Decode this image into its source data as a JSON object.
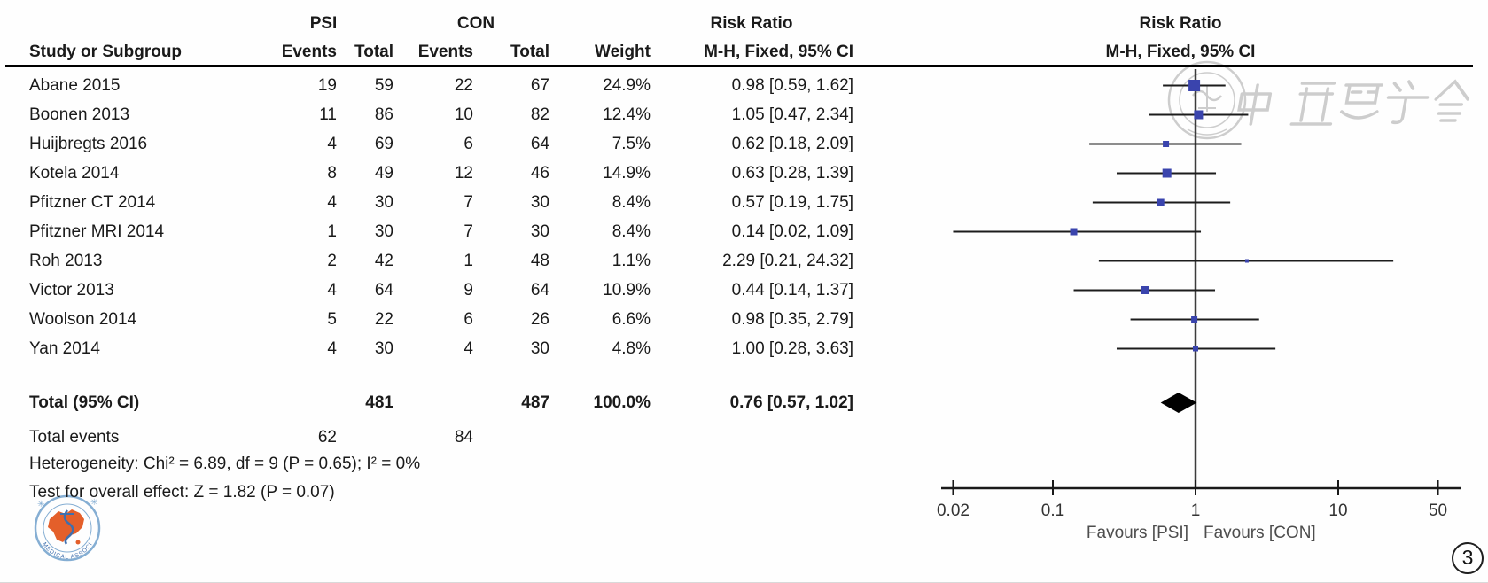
{
  "table": {
    "group1": "PSI",
    "group2": "CON",
    "col_study": "Study or Subgroup",
    "col_events": "Events",
    "col_total": "Total",
    "col_weight": "Weight",
    "col_rr": "Risk Ratio",
    "col_mh": "M-H, Fixed, 95% CI"
  },
  "chart_data": {
    "type": "forest",
    "effect_measure": "Risk Ratio",
    "method": "M-H, Fixed, 95% CI",
    "x_axis": {
      "scale": "log",
      "ticks": [
        0.02,
        0.1,
        1,
        10,
        50
      ],
      "tick_labels": [
        "0.02",
        "0.1",
        "1",
        "10",
        "50"
      ],
      "null_line": 1,
      "range": [
        0.02,
        50
      ]
    },
    "studies": [
      {
        "name": "Abane 2015",
        "psi_events": 19,
        "psi_total": 59,
        "con_events": 22,
        "con_total": 67,
        "weight": "24.9%",
        "weight_pct": 24.9,
        "rr": 0.98,
        "ci_low": 0.59,
        "ci_high": 1.62,
        "label": "0.98 [0.59, 1.62]"
      },
      {
        "name": "Boonen 2013",
        "psi_events": 11,
        "psi_total": 86,
        "con_events": 10,
        "con_total": 82,
        "weight": "12.4%",
        "weight_pct": 12.4,
        "rr": 1.05,
        "ci_low": 0.47,
        "ci_high": 2.34,
        "label": "1.05 [0.47, 2.34]"
      },
      {
        "name": "Huijbregts 2016",
        "psi_events": 4,
        "psi_total": 69,
        "con_events": 6,
        "con_total": 64,
        "weight": "7.5%",
        "weight_pct": 7.5,
        "rr": 0.62,
        "ci_low": 0.18,
        "ci_high": 2.09,
        "label": "0.62 [0.18, 2.09]"
      },
      {
        "name": "Kotela 2014",
        "psi_events": 8,
        "psi_total": 49,
        "con_events": 12,
        "con_total": 46,
        "weight": "14.9%",
        "weight_pct": 14.9,
        "rr": 0.63,
        "ci_low": 0.28,
        "ci_high": 1.39,
        "label": "0.63 [0.28, 1.39]"
      },
      {
        "name": "Pfitzner CT 2014",
        "psi_events": 4,
        "psi_total": 30,
        "con_events": 7,
        "con_total": 30,
        "weight": "8.4%",
        "weight_pct": 8.4,
        "rr": 0.57,
        "ci_low": 0.19,
        "ci_high": 1.75,
        "label": "0.57 [0.19, 1.75]"
      },
      {
        "name": "Pfitzner MRI 2014",
        "psi_events": 1,
        "psi_total": 30,
        "con_events": 7,
        "con_total": 30,
        "weight": "8.4%",
        "weight_pct": 8.4,
        "rr": 0.14,
        "ci_low": 0.02,
        "ci_high": 1.09,
        "label": "0.14 [0.02, 1.09]"
      },
      {
        "name": "Roh 2013",
        "psi_events": 2,
        "psi_total": 42,
        "con_events": 1,
        "con_total": 48,
        "weight": "1.1%",
        "weight_pct": 1.1,
        "rr": 2.29,
        "ci_low": 0.21,
        "ci_high": 24.32,
        "label": "2.29 [0.21, 24.32]"
      },
      {
        "name": "Victor 2013",
        "psi_events": 4,
        "psi_total": 64,
        "con_events": 9,
        "con_total": 64,
        "weight": "10.9%",
        "weight_pct": 10.9,
        "rr": 0.44,
        "ci_low": 0.14,
        "ci_high": 1.37,
        "label": "0.44 [0.14, 1.37]"
      },
      {
        "name": "Woolson 2014",
        "psi_events": 5,
        "psi_total": 22,
        "con_events": 6,
        "con_total": 26,
        "weight": "6.6%",
        "weight_pct": 6.6,
        "rr": 0.98,
        "ci_low": 0.35,
        "ci_high": 2.79,
        "label": "0.98 [0.35, 2.79]"
      },
      {
        "name": "Yan 2014",
        "psi_events": 4,
        "psi_total": 30,
        "con_events": 4,
        "con_total": 30,
        "weight": "4.8%",
        "weight_pct": 4.8,
        "rr": 1.0,
        "ci_low": 0.28,
        "ci_high": 3.63,
        "label": "1.00 [0.28, 3.63]"
      }
    ],
    "total": {
      "name": "Total (95% CI)",
      "psi_total": 481,
      "con_total": 487,
      "weight": "100.0%",
      "rr": 0.76,
      "ci_low": 0.57,
      "ci_high": 1.02,
      "label": "0.76 [0.57, 1.02]"
    },
    "total_events": {
      "label": "Total events",
      "psi": 62,
      "con": 84
    },
    "heterogeneity": "Heterogeneity: Chi² = 6.89, df = 9 (P = 0.65); I² = 0%",
    "overall_effect": "Test for overall effect: Z = 1.82 (P = 0.07)",
    "favours_left": "Favours [PSI]",
    "favours_right": "Favours [CON]",
    "legend_position": "below-axis",
    "grid": false
  },
  "annotations": {
    "figure_number": "3",
    "watermark_script_name": "chinese-medical-association-script-watermark",
    "watermark_stamp_name": "chinese-medical-association-seal-watermark",
    "logo_name": "chinese-medical-association-logo"
  },
  "colors": {
    "marker_square": "#3a44ad",
    "ci_line": "#1c1c1c",
    "diamond": "#000000",
    "null_line": "#3c3c3c",
    "axis": "#1a1a1a",
    "axis_text": "#333333",
    "favours_text": "#4d4d4d",
    "watermark_gray": "#cdcdcd",
    "logo_orange": "#e45f2a",
    "logo_blue": "#85aed3",
    "logo_dark_blue": "#3f6fae"
  }
}
